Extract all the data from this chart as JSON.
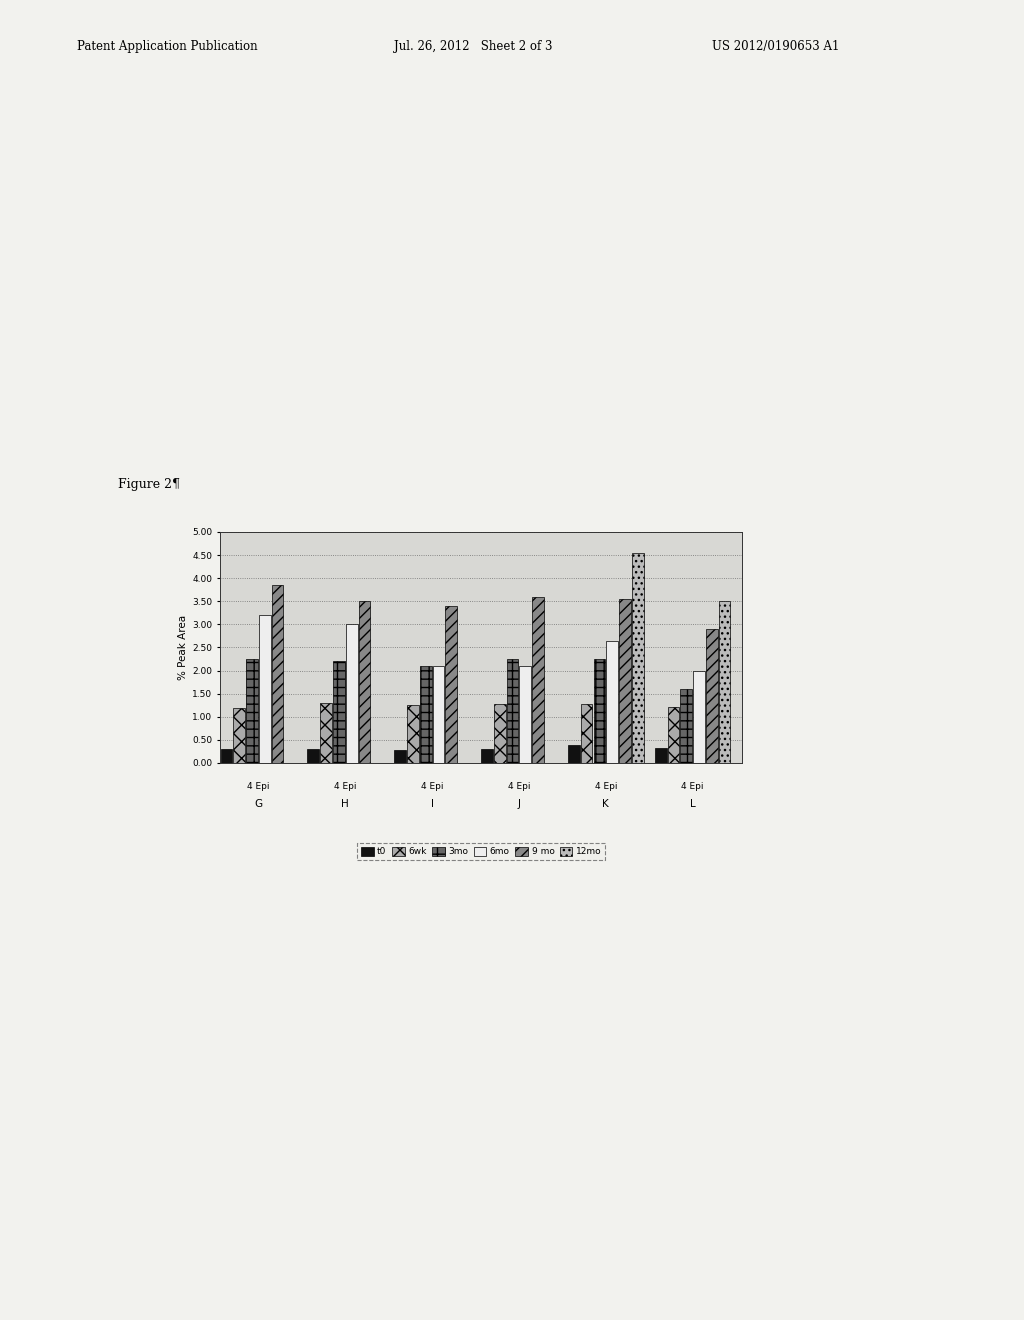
{
  "groups": [
    "G",
    "H",
    "I",
    "J",
    "K",
    "L"
  ],
  "group_sublabel": "4 Epi",
  "series_labels": [
    "t0",
    "6wk",
    "3mo",
    "6mo",
    "9 mo",
    "12mo"
  ],
  "values": {
    "t0": [
      0.3,
      0.3,
      0.28,
      0.3,
      0.38,
      0.32
    ],
    "6wk": [
      1.2,
      1.3,
      1.25,
      1.28,
      1.28,
      1.22
    ],
    "3mo": [
      2.25,
      2.2,
      2.1,
      2.25,
      2.25,
      1.6
    ],
    "6mo": [
      3.2,
      3.0,
      2.1,
      2.1,
      2.65,
      2.0
    ],
    "9mo": [
      3.85,
      3.5,
      3.4,
      3.6,
      3.55,
      2.9
    ],
    "12mo": [
      0.0,
      0.0,
      0.0,
      0.0,
      4.55,
      3.5
    ]
  },
  "series_styles": [
    {
      "color": "#111111",
      "hatch": "",
      "edgecolor": "#000000"
    },
    {
      "color": "#aaaaaa",
      "hatch": "xx",
      "edgecolor": "#000000"
    },
    {
      "color": "#666666",
      "hatch": "++",
      "edgecolor": "#000000"
    },
    {
      "color": "#eeeeee",
      "hatch": "",
      "edgecolor": "#000000"
    },
    {
      "color": "#888888",
      "hatch": "///",
      "edgecolor": "#000000"
    },
    {
      "color": "#bbbbbb",
      "hatch": "...",
      "edgecolor": "#000000"
    }
  ],
  "ylabel": "% Peak Area",
  "ylim": [
    0.0,
    5.0
  ],
  "yticks": [
    0.0,
    0.5,
    1.0,
    1.5,
    2.0,
    2.5,
    3.0,
    3.5,
    4.0,
    4.5,
    5.0
  ],
  "figure_label": "Figure 2¶",
  "header_left": "Patent Application Publication",
  "header_mid": "Jul. 26, 2012   Sheet 2 of 3",
  "header_right": "US 2012/0190653 A1",
  "page_bg": "#f2f2ee",
  "chart_bg": "#d8d8d4"
}
